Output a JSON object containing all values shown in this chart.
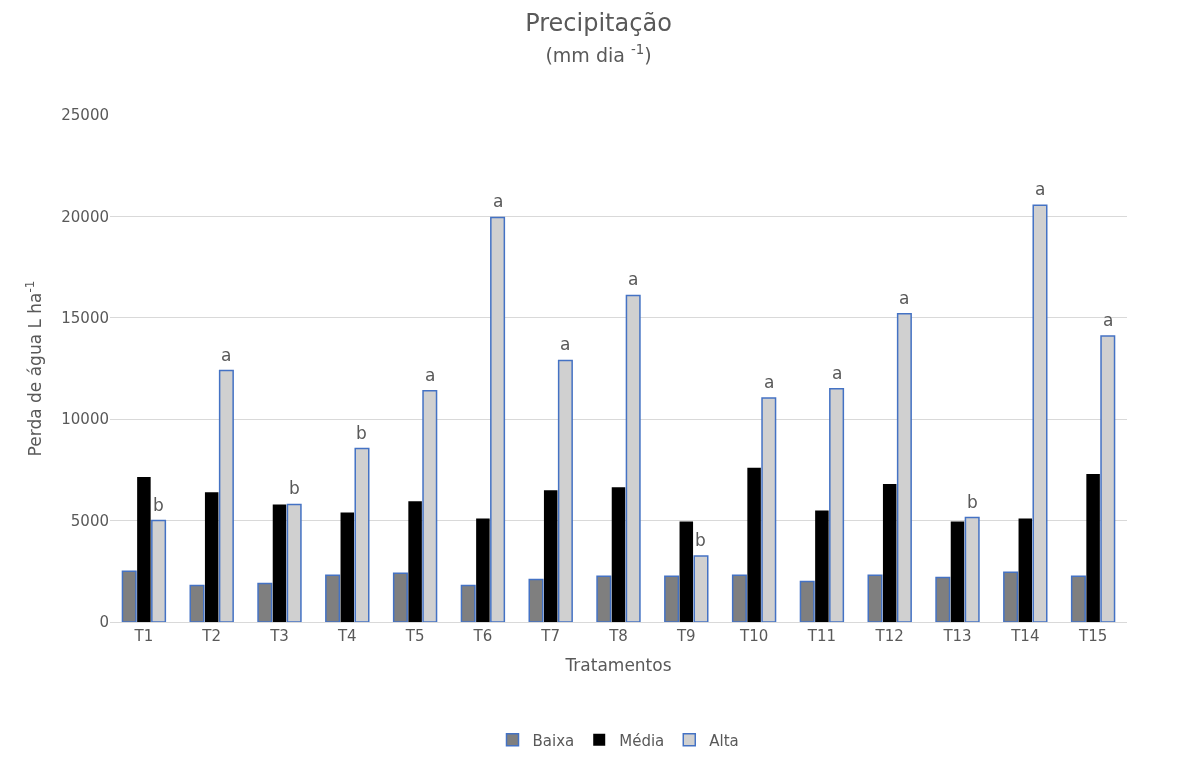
{
  "chart_data": {
    "type": "bar",
    "title": "Precipitação",
    "subtitle": "(mm dia $^{-1}$)",
    "xlabel": "Tratamentos",
    "ylabel": "Perda de água L ha$^{-1}$",
    "categories": [
      "T1",
      "T2",
      "T3",
      "T4",
      "T5",
      "T6",
      "T7",
      "T8",
      "T9",
      "T10",
      "T11",
      "T12",
      "T13",
      "T14",
      "T15"
    ],
    "series": [
      {
        "name": "Baixa",
        "color": "#7f7f7f",
        "values": [
          2500,
          1800,
          1900,
          2300,
          2400,
          1800,
          2100,
          2250,
          2250,
          2300,
          2000,
          2300,
          2200,
          2450,
          2250
        ]
      },
      {
        "name": "Média",
        "color": "#000000",
        "values": [
          7150,
          6400,
          5800,
          5400,
          5950,
          5100,
          6500,
          6650,
          4950,
          7600,
          5500,
          6800,
          4950,
          5100,
          7300
        ]
      },
      {
        "name": "Alta",
        "color": "#d0d0d0",
        "values": [
          5000,
          12400,
          5800,
          8550,
          11400,
          19950,
          12900,
          16100,
          3250,
          11050,
          11500,
          15200,
          5150,
          20550,
          14100
        ]
      }
    ],
    "annotations": [
      "b",
      "a",
      "b",
      "b",
      "a",
      "a",
      "a",
      "a",
      "b",
      "a",
      "a",
      "a",
      "b",
      "a",
      "a"
    ],
    "ylim": [
      0,
      25000
    ],
    "yticks": [
      0,
      5000,
      10000,
      15000,
      20000,
      25000
    ],
    "grid": "y",
    "legend": "bottom"
  }
}
